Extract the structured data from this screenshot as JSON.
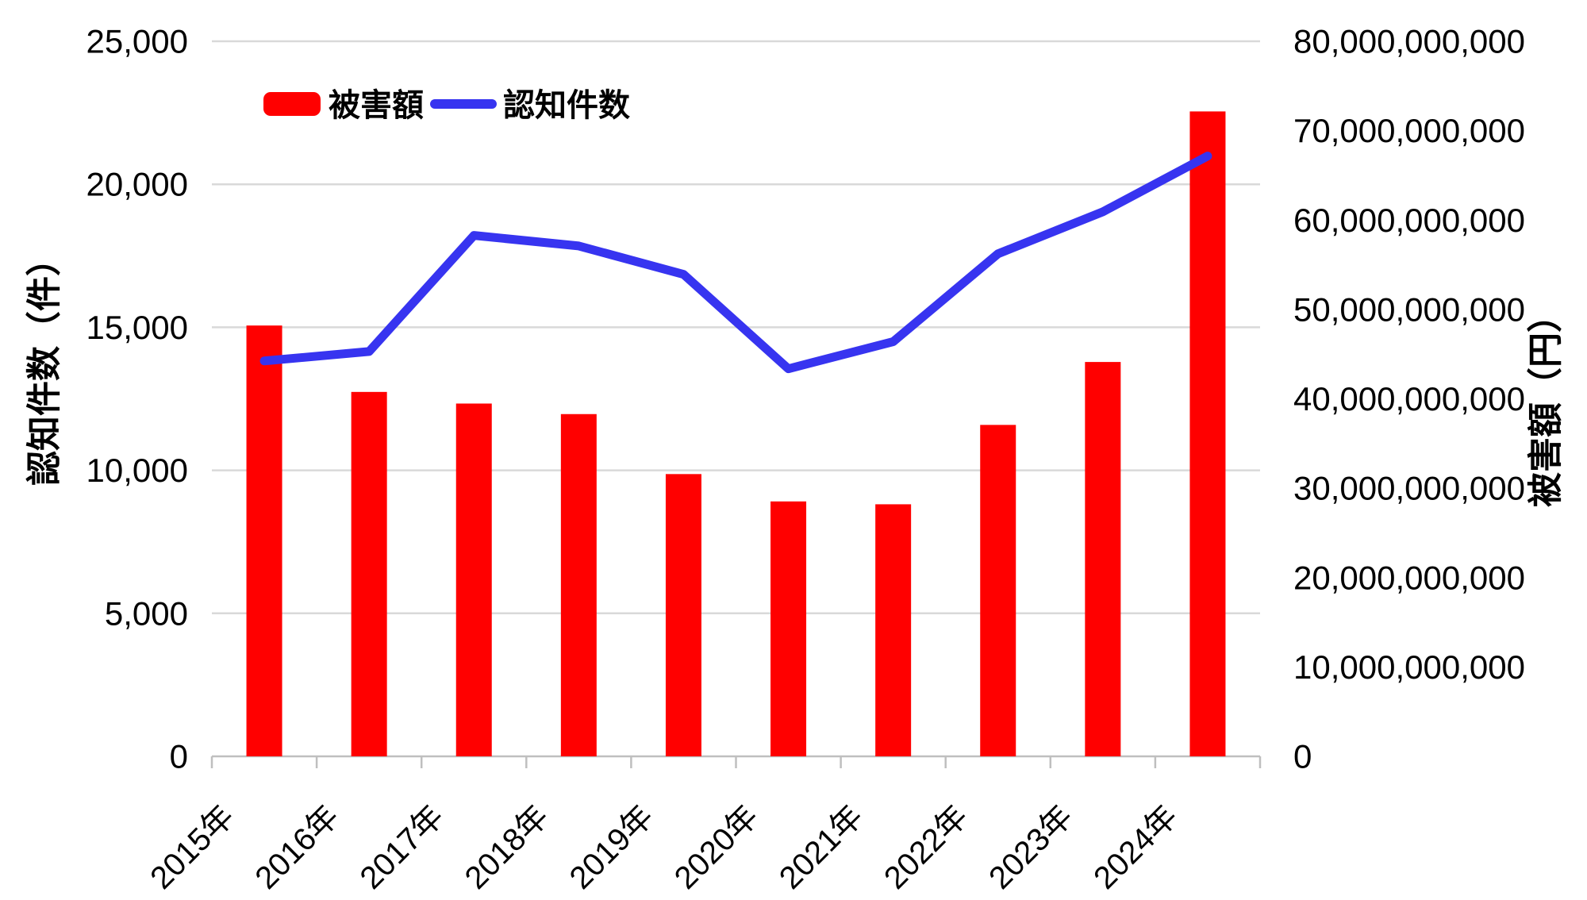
{
  "chart_data": {
    "type": "combo",
    "categories": [
      "2015年",
      "2016年",
      "2017年",
      "2018年",
      "2019年",
      "2020年",
      "2021年",
      "2022年",
      "2023年",
      "2024年"
    ],
    "series": [
      {
        "name": "被害額",
        "type": "bar",
        "axis": "right",
        "color": "#ff0000",
        "values": [
          48200000000,
          40770000000,
          39470000000,
          38290000000,
          31580000000,
          28520000000,
          28200000000,
          37080000000,
          44120000000,
          72150000000
        ]
      },
      {
        "name": "認知件数",
        "type": "line",
        "axis": "left",
        "color": "#3734f0",
        "values": [
          13824,
          14154,
          18212,
          17844,
          16851,
          13550,
          14498,
          17570,
          19038,
          20987
        ]
      }
    ],
    "left_axis": {
      "title": "認知件数（件）",
      "min": 0,
      "max": 25000,
      "step": 5000,
      "tick_labels": [
        "0",
        "5,000",
        "10,000",
        "15,000",
        "20,000",
        "25,000"
      ]
    },
    "right_axis": {
      "title": "被害額（円）",
      "min": 0,
      "max": 80000000000,
      "step": 10000000000,
      "tick_labels": [
        "0",
        "10,000,000,000",
        "20,000,000,000",
        "30,000,000,000",
        "40,000,000,000",
        "50,000,000,000",
        "60,000,000,000",
        "70,000,000,000",
        "80,000,000,000"
      ]
    },
    "grid": {
      "show": true,
      "gridline_color": "#d9d9d9",
      "axis_line_color": "#bfbfbf"
    },
    "legend": {
      "position": "top",
      "items": [
        {
          "label": "被害額",
          "marker": "bar-swatch",
          "color": "#ff0000"
        },
        {
          "label": "認知件数",
          "marker": "line-swatch",
          "color": "#3734f0"
        }
      ]
    },
    "text_color": "#000000",
    "background": "#ffffff"
  }
}
